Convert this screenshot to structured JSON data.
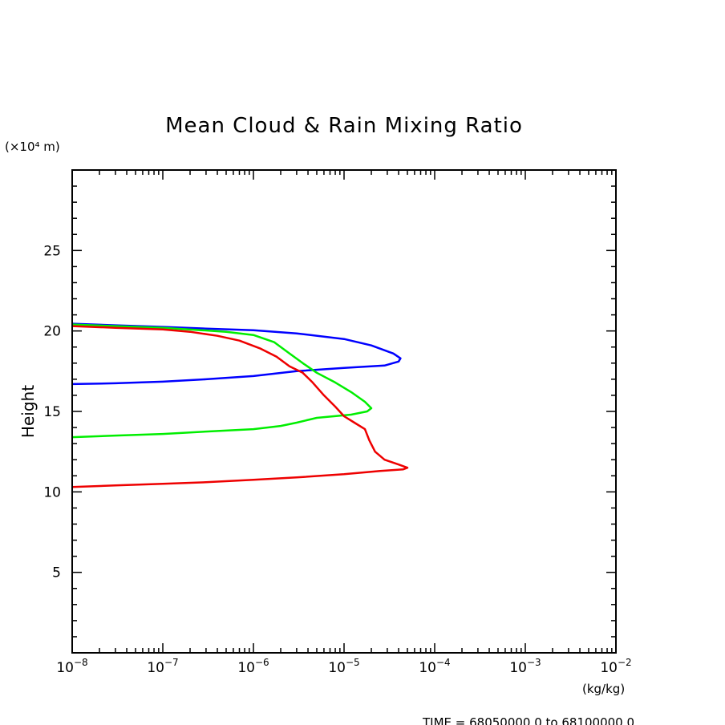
{
  "chart_data": {
    "type": "line",
    "title": "Mean Cloud & Rain Mixing Ratio",
    "ylabel": "Height",
    "y_unit": "(×10⁴ m)",
    "x_unit": "(kg/kg)",
    "footer": "TIME = 68050000.0 to 68100000.0",
    "x_scale": "log",
    "xlim": [
      1e-08,
      0.01
    ],
    "ylim": [
      0,
      30
    ],
    "x_tick_labels": [
      {
        "base": "10",
        "exp": "−8",
        "value": 1e-08
      },
      {
        "base": "10",
        "exp": "−7",
        "value": 1e-07
      },
      {
        "base": "10",
        "exp": "−6",
        "value": 1e-06
      },
      {
        "base": "10",
        "exp": "−5",
        "value": 1e-05
      },
      {
        "base": "10",
        "exp": "−4",
        "value": 0.0001
      },
      {
        "base": "10",
        "exp": "−3",
        "value": 0.001
      },
      {
        "base": "10",
        "exp": "−2",
        "value": 0.01
      }
    ],
    "y_ticks": [
      5,
      10,
      15,
      20,
      25
    ],
    "grid": false,
    "series": [
      {
        "color": "#0000ff",
        "points": [
          [
            1e-08,
            16.7
          ],
          [
            3e-08,
            16.75
          ],
          [
            1e-07,
            16.85
          ],
          [
            3e-07,
            17.0
          ],
          [
            1e-06,
            17.2
          ],
          [
            3e-06,
            17.5
          ],
          [
            1e-05,
            17.7
          ],
          [
            2.8e-05,
            17.85
          ],
          [
            4e-05,
            18.1
          ],
          [
            4.2e-05,
            18.3
          ],
          [
            3.5e-05,
            18.6
          ],
          [
            2e-05,
            19.1
          ],
          [
            1e-05,
            19.5
          ],
          [
            3e-06,
            19.85
          ],
          [
            1e-06,
            20.05
          ],
          [
            3e-07,
            20.15
          ],
          [
            1e-07,
            20.25
          ],
          [
            3e-08,
            20.35
          ],
          [
            1e-08,
            20.45
          ]
        ]
      },
      {
        "color": "#00ee00",
        "points": [
          [
            1e-08,
            13.4
          ],
          [
            3e-08,
            13.5
          ],
          [
            1e-07,
            13.6
          ],
          [
            3e-07,
            13.75
          ],
          [
            1e-06,
            13.9
          ],
          [
            2e-06,
            14.1
          ],
          [
            3e-06,
            14.3
          ],
          [
            5e-06,
            14.6
          ],
          [
            1.2e-05,
            14.8
          ],
          [
            1.8e-05,
            15.0
          ],
          [
            2e-05,
            15.2
          ],
          [
            1.7e-05,
            15.6
          ],
          [
            1.2e-05,
            16.2
          ],
          [
            8e-06,
            16.8
          ],
          [
            5e-06,
            17.4
          ],
          [
            3.5e-06,
            18.0
          ],
          [
            2.5e-06,
            18.6
          ],
          [
            1.7e-06,
            19.3
          ],
          [
            1e-06,
            19.75
          ],
          [
            5e-07,
            19.95
          ],
          [
            1e-07,
            20.2
          ],
          [
            3e-08,
            20.3
          ],
          [
            1e-08,
            20.4
          ]
        ]
      },
      {
        "color": "#ee0000",
        "points": [
          [
            1e-08,
            10.3
          ],
          [
            3e-08,
            10.4
          ],
          [
            1e-07,
            10.5
          ],
          [
            3e-07,
            10.6
          ],
          [
            1e-06,
            10.75
          ],
          [
            3e-06,
            10.9
          ],
          [
            1e-05,
            11.1
          ],
          [
            2.5e-05,
            11.3
          ],
          [
            4.5e-05,
            11.4
          ],
          [
            5e-05,
            11.5
          ],
          [
            4e-05,
            11.7
          ],
          [
            2.8e-05,
            12.0
          ],
          [
            2.2e-05,
            12.5
          ],
          [
            1.9e-05,
            13.2
          ],
          [
            1.7e-05,
            13.9
          ],
          [
            1.3e-05,
            14.3
          ],
          [
            1e-05,
            14.7
          ],
          [
            8e-06,
            15.3
          ],
          [
            6e-06,
            16.0
          ],
          [
            4.5e-06,
            16.8
          ],
          [
            3.5e-06,
            17.4
          ],
          [
            2.5e-06,
            17.8
          ],
          [
            1.8e-06,
            18.4
          ],
          [
            1.2e-06,
            18.9
          ],
          [
            7e-07,
            19.4
          ],
          [
            4e-07,
            19.7
          ],
          [
            2e-07,
            19.95
          ],
          [
            1e-07,
            20.1
          ],
          [
            3e-08,
            20.2
          ],
          [
            1e-08,
            20.3
          ]
        ]
      }
    ]
  }
}
